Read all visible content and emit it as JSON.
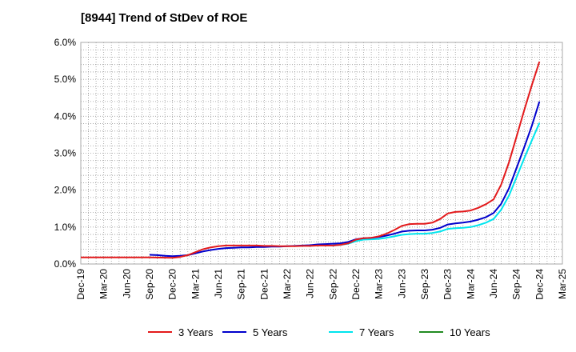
{
  "chart_data": {
    "type": "line",
    "title": "[8944]  Trend of StDev of ROE",
    "xlabel": "",
    "ylabel": "",
    "ylim": [
      0,
      6.0
    ],
    "yticks": [
      0,
      1,
      2,
      3,
      4,
      5,
      6
    ],
    "ytick_labels": [
      "0.0%",
      "1.0%",
      "2.0%",
      "3.0%",
      "4.0%",
      "5.0%",
      "6.0%"
    ],
    "x_categories": [
      "Dec-19",
      "Mar-20",
      "Jun-20",
      "Sep-20",
      "Dec-20",
      "Mar-21",
      "Jun-21",
      "Sep-21",
      "Dec-21",
      "Mar-22",
      "Jun-22",
      "Sep-22",
      "Dec-22",
      "Mar-23",
      "Jun-23",
      "Sep-23",
      "Dec-23",
      "Mar-24",
      "Jun-24",
      "Sep-24",
      "Dec-24",
      "Mar-25"
    ],
    "grid": true,
    "legend_position": "bottom",
    "series": [
      {
        "name": "3 Years",
        "color": "#e31a1c",
        "points": [
          [
            0,
            0.18
          ],
          [
            1,
            0.18
          ],
          [
            2,
            0.18
          ],
          [
            3,
            0.18
          ],
          [
            4,
            0.17
          ],
          [
            4.33,
            0.19
          ],
          [
            4.67,
            0.24
          ],
          [
            5,
            0.32
          ],
          [
            5.33,
            0.4
          ],
          [
            5.67,
            0.45
          ],
          [
            6,
            0.48
          ],
          [
            6.33,
            0.5
          ],
          [
            6.67,
            0.5
          ],
          [
            7,
            0.5
          ],
          [
            7.33,
            0.5
          ],
          [
            7.67,
            0.5
          ],
          [
            8,
            0.49
          ],
          [
            8.33,
            0.49
          ],
          [
            8.67,
            0.48
          ],
          [
            9,
            0.48
          ],
          [
            9.33,
            0.48
          ],
          [
            9.67,
            0.49
          ],
          [
            10,
            0.49
          ],
          [
            10.33,
            0.5
          ],
          [
            10.67,
            0.5
          ],
          [
            11,
            0.5
          ]
        ]
      },
      {
        "name": "5 Years",
        "color": "#0000cc",
        "points": [
          [
            3,
            0.25
          ],
          [
            3.33,
            0.24
          ],
          [
            3.67,
            0.22
          ],
          [
            4,
            0.21
          ],
          [
            4.33,
            0.22
          ],
          [
            4.67,
            0.24
          ],
          [
            5,
            0.29
          ],
          [
            5.33,
            0.34
          ],
          [
            5.67,
            0.38
          ],
          [
            6,
            0.41
          ],
          [
            6.33,
            0.43
          ],
          [
            6.67,
            0.44
          ],
          [
            7,
            0.45
          ],
          [
            7.33,
            0.45
          ],
          [
            7.67,
            0.46
          ],
          [
            8,
            0.46
          ],
          [
            8.33,
            0.47
          ],
          [
            8.67,
            0.47
          ],
          [
            9,
            0.48
          ],
          [
            9.33,
            0.49
          ],
          [
            9.67,
            0.5
          ],
          [
            10,
            0.51
          ],
          [
            10.33,
            0.53
          ],
          [
            10.67,
            0.54
          ],
          [
            11,
            0.55
          ],
          [
            11.33,
            0.56
          ],
          [
            11.67,
            0.6
          ],
          [
            12,
            0.67
          ],
          [
            12.33,
            0.7
          ],
          [
            12.67,
            0.71
          ],
          [
            13,
            0.73
          ],
          [
            13.33,
            0.77
          ],
          [
            13.67,
            0.82
          ],
          [
            14,
            0.88
          ],
          [
            14.33,
            0.9
          ],
          [
            14.67,
            0.91
          ],
          [
            15,
            0.91
          ],
          [
            15.33,
            0.93
          ],
          [
            15.67,
            0.98
          ],
          [
            16,
            1.07
          ],
          [
            16.33,
            1.1
          ],
          [
            16.67,
            1.12
          ],
          [
            17,
            1.15
          ],
          [
            17.33,
            1.2
          ],
          [
            17.67,
            1.27
          ],
          [
            18,
            1.38
          ],
          [
            18.33,
            1.63
          ],
          [
            18.67,
            2.05
          ],
          [
            19,
            2.6
          ],
          [
            19.33,
            3.15
          ],
          [
            19.67,
            3.75
          ],
          [
            20,
            4.4
          ]
        ]
      },
      {
        "name": "7 Years",
        "color": "#00e5ee",
        "points": [
          [
            11,
            0.5
          ],
          [
            11.33,
            0.52
          ],
          [
            11.67,
            0.55
          ],
          [
            12,
            0.62
          ],
          [
            12.33,
            0.66
          ],
          [
            12.67,
            0.67
          ],
          [
            13,
            0.68
          ],
          [
            13.33,
            0.71
          ],
          [
            13.67,
            0.75
          ],
          [
            14,
            0.79
          ],
          [
            14.33,
            0.81
          ],
          [
            14.67,
            0.82
          ],
          [
            15,
            0.82
          ],
          [
            15.33,
            0.84
          ],
          [
            15.67,
            0.88
          ],
          [
            16,
            0.95
          ],
          [
            16.33,
            0.97
          ],
          [
            16.67,
            0.98
          ],
          [
            17,
            1.0
          ],
          [
            17.33,
            1.05
          ],
          [
            17.67,
            1.12
          ],
          [
            18,
            1.22
          ],
          [
            18.33,
            1.47
          ],
          [
            18.67,
            1.85
          ],
          [
            19,
            2.35
          ],
          [
            19.33,
            2.85
          ],
          [
            19.67,
            3.35
          ],
          [
            20,
            3.82
          ]
        ]
      },
      {
        "name": "10 Years",
        "color": "#228b22",
        "points": []
      }
    ],
    "series_3y_tail": [
      [
        11,
        0.5
      ],
      [
        11.33,
        0.52
      ],
      [
        11.67,
        0.56
      ],
      [
        12,
        0.66
      ],
      [
        12.33,
        0.7
      ],
      [
        12.67,
        0.71
      ],
      [
        13,
        0.75
      ],
      [
        13.33,
        0.82
      ],
      [
        13.67,
        0.92
      ],
      [
        14,
        1.03
      ],
      [
        14.33,
        1.08
      ],
      [
        14.67,
        1.09
      ],
      [
        15,
        1.09
      ],
      [
        15.33,
        1.12
      ],
      [
        15.67,
        1.22
      ],
      [
        16,
        1.37
      ],
      [
        16.33,
        1.41
      ],
      [
        16.67,
        1.42
      ],
      [
        17,
        1.45
      ],
      [
        17.33,
        1.52
      ],
      [
        17.67,
        1.62
      ],
      [
        18,
        1.75
      ],
      [
        18.33,
        2.15
      ],
      [
        18.67,
        2.75
      ],
      [
        19,
        3.45
      ],
      [
        19.33,
        4.15
      ],
      [
        19.67,
        4.85
      ],
      [
        20,
        5.48
      ]
    ]
  }
}
